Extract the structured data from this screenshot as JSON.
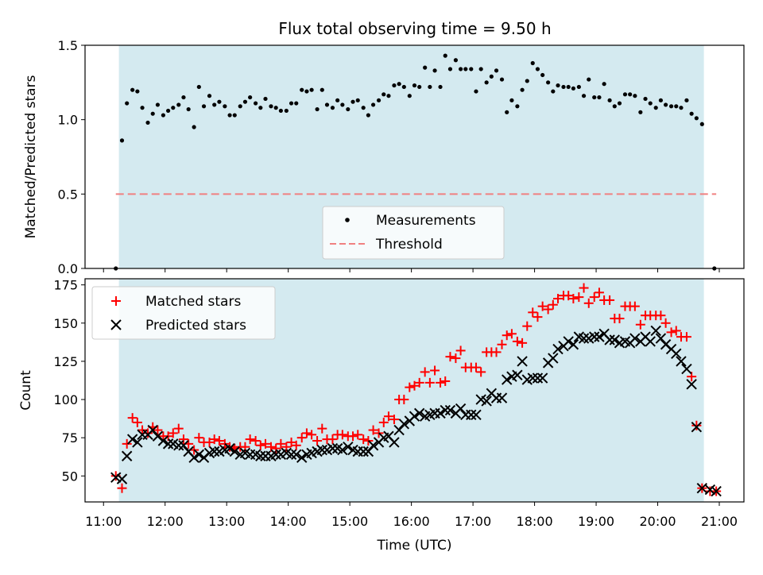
{
  "figure": {
    "title": "Flux total observing time = 9.50 h"
  },
  "colors": {
    "span": "#d4eaf0",
    "threshold": "#f08080",
    "matched": "#ff0000",
    "predicted": "#000000",
    "measure": "#000000"
  },
  "chart_data": [
    {
      "type": "scatter",
      "name": "ratio-panel",
      "ylabel": "Matched/Predicted stars",
      "xlim": [
        10.7,
        21.4
      ],
      "ylim": [
        0,
        1.5
      ],
      "yticks": [
        0.0,
        0.5,
        1.0,
        1.5
      ],
      "ytick_labels": [
        "0.0",
        "0.5",
        "1.0",
        "1.5"
      ],
      "observing_span": [
        11.25,
        20.75
      ],
      "threshold": {
        "label": "Threshold",
        "value": 0.5,
        "x_range": [
          11.2,
          20.95
        ]
      },
      "legend": {
        "position": "lower-center",
        "entries": [
          "Measurements",
          "Threshold"
        ]
      },
      "series": [
        {
          "name": "Measurements",
          "marker": "dot",
          "x": [
            11.2,
            11.3,
            11.38,
            11.47,
            11.55,
            11.63,
            11.72,
            11.8,
            11.88,
            11.97,
            12.05,
            12.13,
            12.22,
            12.3,
            12.38,
            12.47,
            12.55,
            12.63,
            12.72,
            12.8,
            12.88,
            12.97,
            13.05,
            13.13,
            13.22,
            13.3,
            13.38,
            13.47,
            13.55,
            13.63,
            13.72,
            13.8,
            13.88,
            13.97,
            14.05,
            14.13,
            14.22,
            14.3,
            14.38,
            14.47,
            14.55,
            14.63,
            14.72,
            14.8,
            14.88,
            14.97,
            15.05,
            15.13,
            15.22,
            15.3,
            15.38,
            15.47,
            15.55,
            15.63,
            15.72,
            15.8,
            15.88,
            15.97,
            16.05,
            16.13,
            16.22,
            16.3,
            16.38,
            16.47,
            16.55,
            16.63,
            16.72,
            16.8,
            16.88,
            16.97,
            17.05,
            17.13,
            17.22,
            17.3,
            17.38,
            17.47,
            17.55,
            17.63,
            17.72,
            17.8,
            17.88,
            17.97,
            18.05,
            18.13,
            18.22,
            18.3,
            18.38,
            18.47,
            18.55,
            18.63,
            18.72,
            18.8,
            18.88,
            18.97,
            19.05,
            19.13,
            19.22,
            19.3,
            19.38,
            19.47,
            19.55,
            19.63,
            19.72,
            19.8,
            19.88,
            19.97,
            20.05,
            20.13,
            20.22,
            20.3,
            20.38,
            20.47,
            20.55,
            20.63,
            20.72,
            20.92
          ],
          "y": [
            0.0,
            0.86,
            1.11,
            1.2,
            1.19,
            1.08,
            0.98,
            1.04,
            1.1,
            1.03,
            1.06,
            1.08,
            1.1,
            1.15,
            1.07,
            0.95,
            1.22,
            1.09,
            1.16,
            1.1,
            1.12,
            1.09,
            1.03,
            1.03,
            1.09,
            1.12,
            1.15,
            1.11,
            1.08,
            1.14,
            1.09,
            1.08,
            1.06,
            1.06,
            1.11,
            1.11,
            1.2,
            1.19,
            1.2,
            1.07,
            1.2,
            1.1,
            1.08,
            1.13,
            1.1,
            1.07,
            1.12,
            1.13,
            1.08,
            1.03,
            1.1,
            1.13,
            1.17,
            1.16,
            1.23,
            1.24,
            1.22,
            1.16,
            1.23,
            1.22,
            1.35,
            1.22,
            1.33,
            1.22,
            1.43,
            1.34,
            1.4,
            1.34,
            1.34,
            1.34,
            1.19,
            1.34,
            1.25,
            1.29,
            1.33,
            1.27,
            1.05,
            1.13,
            1.09,
            1.2,
            1.26,
            1.38,
            1.34,
            1.3,
            1.25,
            1.19,
            1.23,
            1.22,
            1.22,
            1.21,
            1.22,
            1.16,
            1.27,
            1.15,
            1.15,
            1.24,
            1.13,
            1.09,
            1.11,
            1.17,
            1.17,
            1.16,
            1.05,
            1.14,
            1.11,
            1.08,
            1.13,
            1.1,
            1.09,
            1.09,
            1.08,
            1.13,
            1.04,
            1.01,
            0.97,
            0.0
          ]
        }
      ]
    },
    {
      "type": "scatter",
      "name": "count-panel",
      "xlabel": "Time (UTC)",
      "ylabel": "Count",
      "xlim": [
        10.7,
        21.4
      ],
      "ylim": [
        33,
        179
      ],
      "xticks": [
        11,
        12,
        13,
        14,
        15,
        16,
        17,
        18,
        19,
        20,
        21
      ],
      "xtick_labels": [
        "11:00",
        "12:00",
        "13:00",
        "14:00",
        "15:00",
        "16:00",
        "17:00",
        "18:00",
        "19:00",
        "20:00",
        "21:00"
      ],
      "yticks": [
        50,
        75,
        100,
        125,
        150,
        175
      ],
      "ytick_labels": [
        "50",
        "75",
        "100",
        "125",
        "150",
        "175"
      ],
      "observing_span": [
        11.25,
        20.75
      ],
      "legend": {
        "position": "upper-left",
        "entries": [
          "Matched stars",
          "Predicted stars"
        ]
      },
      "x": [
        11.2,
        11.3,
        11.38,
        11.47,
        11.55,
        11.63,
        11.72,
        11.8,
        11.88,
        11.97,
        12.05,
        12.13,
        12.22,
        12.3,
        12.38,
        12.47,
        12.55,
        12.63,
        12.72,
        12.8,
        12.88,
        12.97,
        13.05,
        13.13,
        13.22,
        13.3,
        13.38,
        13.47,
        13.55,
        13.63,
        13.72,
        13.8,
        13.88,
        13.97,
        14.05,
        14.13,
        14.22,
        14.3,
        14.38,
        14.47,
        14.55,
        14.63,
        14.72,
        14.8,
        14.88,
        14.97,
        15.05,
        15.13,
        15.22,
        15.3,
        15.38,
        15.47,
        15.55,
        15.63,
        15.72,
        15.8,
        15.88,
        15.97,
        16.05,
        16.13,
        16.22,
        16.3,
        16.38,
        16.47,
        16.55,
        16.63,
        16.72,
        16.8,
        16.88,
        16.97,
        17.05,
        17.13,
        17.22,
        17.3,
        17.38,
        17.47,
        17.55,
        17.63,
        17.72,
        17.8,
        17.88,
        17.97,
        18.05,
        18.13,
        18.22,
        18.3,
        18.38,
        18.47,
        18.55,
        18.63,
        18.72,
        18.8,
        18.88,
        18.97,
        19.05,
        19.13,
        19.22,
        19.3,
        19.38,
        19.47,
        19.55,
        19.63,
        19.72,
        19.8,
        19.88,
        19.97,
        20.05,
        20.13,
        20.22,
        20.3,
        20.38,
        20.47,
        20.55,
        20.63,
        20.72,
        20.85,
        20.95
      ],
      "series": [
        {
          "name": "Matched stars",
          "marker": "plus",
          "y": [
            50,
            42,
            71,
            88,
            85,
            80,
            78,
            82,
            80,
            76,
            76,
            78,
            81,
            74,
            71,
            67,
            75,
            72,
            72,
            74,
            73,
            71,
            69,
            68,
            69,
            69,
            74,
            73,
            70,
            71,
            69,
            68,
            71,
            69,
            72,
            70,
            75,
            78,
            77,
            73,
            81,
            74,
            74,
            77,
            77,
            76,
            76,
            77,
            74,
            73,
            80,
            78,
            85,
            89,
            87,
            100,
            100,
            108,
            109,
            111,
            118,
            111,
            119,
            111,
            112,
            128,
            127,
            132,
            121,
            121,
            121,
            118,
            131,
            131,
            131,
            136,
            142,
            143,
            138,
            137,
            148,
            157,
            154,
            161,
            159,
            162,
            166,
            168,
            168,
            166,
            167,
            173,
            163,
            167,
            170,
            165,
            165,
            153,
            153,
            161,
            161,
            161,
            149,
            155,
            155,
            155,
            155,
            150,
            144,
            145,
            141,
            141,
            115,
            83,
            42,
            40,
            40
          ]
        },
        {
          "name": "Predicted stars",
          "marker": "x",
          "y": [
            49,
            48,
            63,
            74,
            72,
            77,
            77,
            80,
            76,
            73,
            71,
            71,
            70,
            70,
            66,
            62,
            64,
            62,
            65,
            66,
            66,
            67,
            68,
            66,
            64,
            65,
            64,
            64,
            63,
            63,
            63,
            64,
            64,
            65,
            64,
            64,
            62,
            64,
            65,
            66,
            67,
            67,
            68,
            68,
            67,
            69,
            67,
            66,
            66,
            66,
            70,
            72,
            75,
            76,
            72,
            80,
            84,
            86,
            89,
            91,
            89,
            90,
            91,
            91,
            93,
            93,
            91,
            94,
            90,
            90,
            90,
            100,
            99,
            104,
            101,
            101,
            113,
            115,
            116,
            125,
            113,
            114,
            114,
            114,
            124,
            127,
            133,
            135,
            138,
            136,
            141,
            140,
            140,
            141,
            141,
            143,
            139,
            139,
            137,
            138,
            137,
            140,
            138,
            141,
            138,
            145,
            140,
            136,
            133,
            130,
            125,
            120,
            110,
            82,
            42,
            41,
            40
          ]
        }
      ]
    }
  ]
}
